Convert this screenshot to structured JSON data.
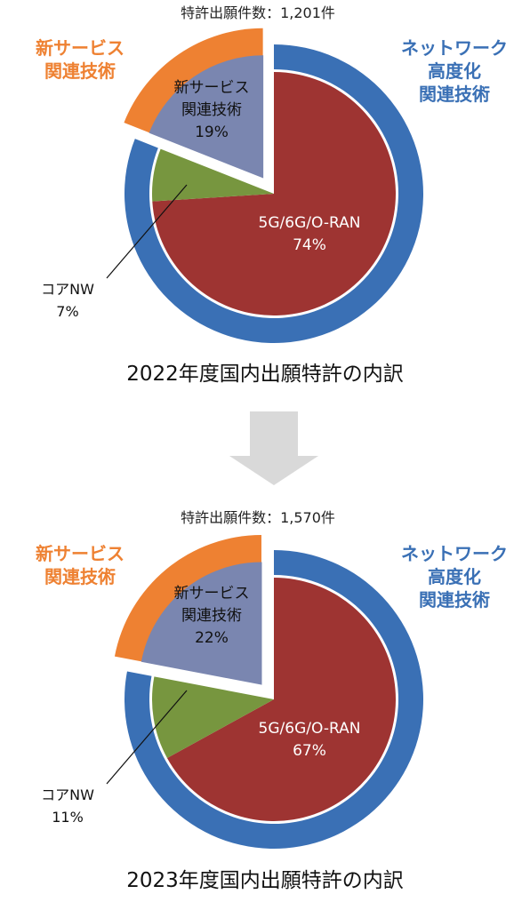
{
  "chart_data": [
    {
      "type": "pie",
      "total_label": "特許出願件数：1,201件",
      "title": "2022年度国内出願特許の内訳",
      "inner": [
        {
          "name": "5G/6G/O-RAN",
          "label": "5G/6G/O-RAN",
          "pct_label": "74%",
          "value": 74,
          "color": "#9e3432"
        },
        {
          "name": "コアNW",
          "label": "コアNW",
          "pct_label": "7%",
          "value": 7,
          "color": "#77963f"
        },
        {
          "name": "新サービス関連技術",
          "label": "新サービス\n関連技術",
          "pct_label": "19%",
          "value": 19,
          "color": "#7a86b0"
        }
      ],
      "outer": [
        {
          "name": "ネットワーク高度化関連技術",
          "label": "ネットワーク\n高度化\n関連技術",
          "value": 81,
          "color": "#3a70b5"
        },
        {
          "name": "新サービス関連技術",
          "label": "新サービス\n関連技術",
          "value": 19,
          "color": "#ee8132"
        }
      ]
    },
    {
      "type": "pie",
      "total_label": "特許出願件数：1,570件",
      "title": "2023年度国内出願特許の内訳",
      "inner": [
        {
          "name": "5G/6G/O-RAN",
          "label": "5G/6G/O-RAN",
          "pct_label": "67%",
          "value": 67,
          "color": "#9e3432"
        },
        {
          "name": "コアNW",
          "label": "コアNW",
          "pct_label": "11%",
          "value": 11,
          "color": "#77963f"
        },
        {
          "name": "新サービス関連技術",
          "label": "新サービス\n関連技術",
          "pct_label": "22%",
          "value": 22,
          "color": "#7a86b0"
        }
      ],
      "outer": [
        {
          "name": "ネットワーク高度化関連技術",
          "label": "ネットワーク\n高度化\n関連技術",
          "value": 78,
          "color": "#3a70b5"
        },
        {
          "name": "新サービス関連技術",
          "label": "新サービス\n関連技術",
          "value": 22,
          "color": "#ee8132"
        }
      ]
    }
  ],
  "arrow": {
    "color": "#d9d9d9",
    "icon": "down-arrow-icon"
  }
}
